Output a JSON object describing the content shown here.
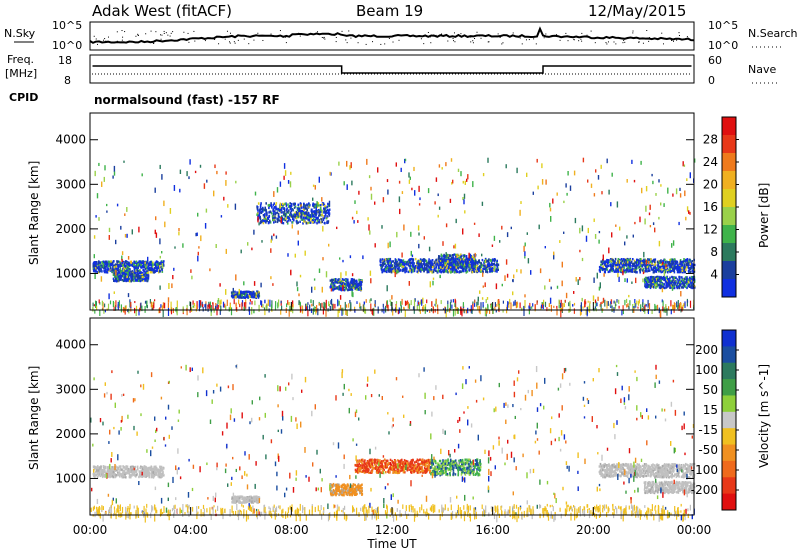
{
  "header": {
    "radar": "Adak West (fitACF)",
    "beam": "Beam 19",
    "date": "12/May/2015"
  },
  "noise_panel": {
    "left_label": "N.Sky",
    "right_label": "N.Search",
    "left_ticks": [
      "10^5",
      "10^0"
    ],
    "right_ticks": [
      "10^5",
      "10^0"
    ]
  },
  "freq_panel": {
    "left_label_1": "Freq.",
    "left_label_2": "[MHz]",
    "left_ticks": [
      "18",
      "8"
    ],
    "right_label": "Nave",
    "right_ticks": [
      "60",
      "0"
    ]
  },
  "cpid": {
    "label": "CPID",
    "text": "normalsound (fast) -157 RF"
  },
  "x_axis": {
    "label": "Time UT",
    "ticks": [
      "00:00",
      "04:00",
      "08:00",
      "12:00",
      "16:00",
      "20:00",
      "00:00"
    ]
  },
  "chart_data": [
    {
      "type": "heatmap",
      "quantity": "power",
      "ylabel": "Slant Range [km]",
      "y_ticks": [
        "1000",
        "2000",
        "3000",
        "4000"
      ],
      "ylim": [
        180,
        4600
      ],
      "xlim_hours": [
        0,
        24
      ],
      "colorbar_label": "Power [dB]",
      "colorbar_ticks": [
        "4",
        "8",
        "12",
        "16",
        "20",
        "24",
        "28"
      ],
      "colorbar_colors": [
        "#1030e0",
        "#1b3f9e",
        "#2c7a5e",
        "#3fb34a",
        "#9ad14a",
        "#e0d020",
        "#f0b020",
        "#ef7a1c",
        "#e83818",
        "#e01010"
      ],
      "echo_regions": [
        {
          "t0": 0.1,
          "t1": 2.9,
          "r0": 1050,
          "r1": 1300
        },
        {
          "t0": 0.9,
          "t1": 2.3,
          "r0": 850,
          "r1": 1050
        },
        {
          "t0": 5.6,
          "t1": 6.7,
          "r0": 480,
          "r1": 620
        },
        {
          "t0": 6.6,
          "t1": 9.5,
          "r0": 2150,
          "r1": 2600
        },
        {
          "t0": 9.5,
          "t1": 10.8,
          "r0": 650,
          "r1": 900
        },
        {
          "t0": 11.5,
          "t1": 16.2,
          "r0": 1050,
          "r1": 1350
        },
        {
          "t0": 13.8,
          "t1": 15.3,
          "r0": 1150,
          "r1": 1450
        },
        {
          "t0": 20.2,
          "t1": 24,
          "r0": 1050,
          "r1": 1350
        },
        {
          "t0": 22,
          "t1": 24,
          "r0": 700,
          "r1": 950
        }
      ]
    },
    {
      "type": "heatmap",
      "quantity": "velocity",
      "ylabel": "Slant Range [km]",
      "y_ticks": [
        "1000",
        "2000",
        "3000",
        "4000"
      ],
      "ylim": [
        180,
        4600
      ],
      "xlim_hours": [
        0,
        24
      ],
      "colorbar_label": "Velocity [m s^-1]",
      "colorbar_ticks": [
        "200",
        "100",
        "50",
        "15",
        "-15",
        "-50",
        "-100",
        "-200"
      ],
      "colorbar_colors": [
        "#1030d0",
        "#1b4ea0",
        "#2c7a5e",
        "#3f9e46",
        "#8ecf3a",
        "#c8c8c8",
        "#f0c020",
        "#f09020",
        "#ef6a1c",
        "#e83818",
        "#e00f0f"
      ],
      "echo_regions": [
        {
          "t0": 0.1,
          "t1": 2.9,
          "r0": 1050,
          "r1": 1300,
          "v": "grey"
        },
        {
          "t0": 5.6,
          "t1": 6.7,
          "r0": 480,
          "r1": 620,
          "v": "grey"
        },
        {
          "t0": 9.5,
          "t1": 10.8,
          "r0": 650,
          "r1": 900,
          "v": "orange"
        },
        {
          "t0": 10.5,
          "t1": 13.5,
          "r0": 1150,
          "r1": 1450,
          "v": "red"
        },
        {
          "t0": 13.5,
          "t1": 15.5,
          "r0": 1100,
          "r1": 1450,
          "v": "green"
        },
        {
          "t0": 20.2,
          "t1": 24,
          "r0": 1050,
          "r1": 1350,
          "v": "grey"
        },
        {
          "t0": 22,
          "t1": 24,
          "r0": 700,
          "r1": 950,
          "v": "grey"
        }
      ]
    }
  ]
}
